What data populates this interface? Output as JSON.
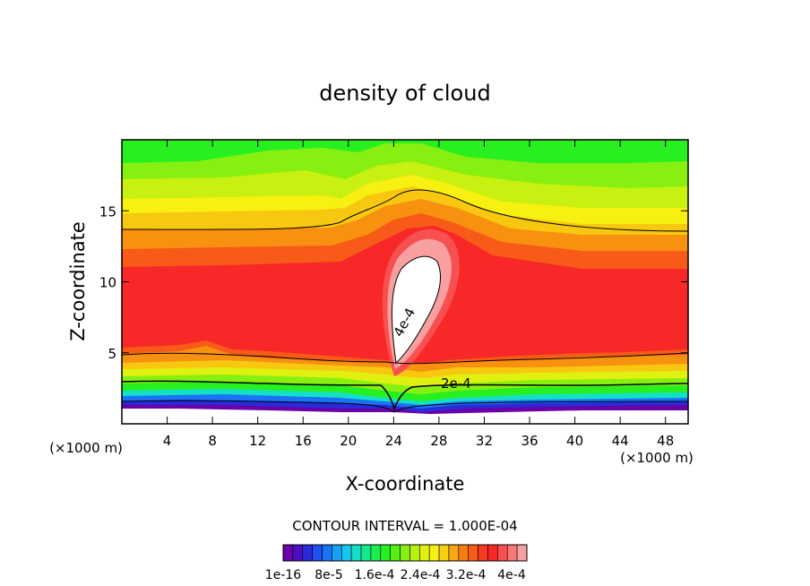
{
  "chart_data": {
    "type": "filled-contour",
    "title": "density of cloud",
    "xlabel": "X-coordinate",
    "ylabel": "Z-coordinate",
    "x_unit": "(×1000 m)",
    "z_unit": "(×1000 m)",
    "xlim": [
      0,
      50
    ],
    "ylim": [
      0,
      20
    ],
    "x_ticks": [
      4,
      8,
      12,
      16,
      20,
      24,
      28,
      32,
      36,
      40,
      44,
      48
    ],
    "y_ticks": [
      5,
      10,
      15
    ],
    "x_tick_labels": [
      "4",
      "8",
      "12",
      "16",
      "20",
      "24",
      "28",
      "32",
      "36",
      "40",
      "44",
      "48"
    ],
    "y_tick_labels": [
      "5",
      "10",
      "15"
    ],
    "contour_interval_text": "CONTOUR INTERVAL = 1.000E-04",
    "contour_labels": [
      {
        "text": "2e-4",
        "x": 29.5,
        "z": 2.9
      },
      {
        "text": "4e-4",
        "x": 25.3,
        "z": 7.0
      }
    ],
    "colorbar": {
      "labels": [
        "1e-16",
        "8e-5",
        "1.6e-4",
        "2.4e-4",
        "3.2e-4",
        "4e-4"
      ],
      "colors": [
        "#6a00a8",
        "#4b0fc0",
        "#2a2ad8",
        "#1f4ff0",
        "#1a72f5",
        "#16a0f5",
        "#14c8f0",
        "#14e0c8",
        "#14e88c",
        "#18ee50",
        "#28f020",
        "#58f010",
        "#88f010",
        "#b8f010",
        "#e0f010",
        "#f8f010",
        "#f8d010",
        "#f8a810",
        "#f87d10",
        "#f85a18",
        "#f83a24",
        "#f82828",
        "#f85050",
        "#f87878",
        "#f8a0a0"
      ]
    },
    "bands": [
      {
        "name": "top",
        "fill": "#28f020"
      },
      {
        "name": "lightgreen",
        "fill": "#88f010"
      },
      {
        "name": "yellowgreen",
        "fill": "#c8f010"
      },
      {
        "name": "yellow",
        "fill": "#f8f010"
      },
      {
        "name": "orange-yellow",
        "fill": "#f8c810"
      },
      {
        "name": "orange",
        "fill": "#f89010"
      },
      {
        "name": "red-orange",
        "fill": "#f85a18"
      },
      {
        "name": "red",
        "fill": "#f82828"
      }
    ]
  }
}
